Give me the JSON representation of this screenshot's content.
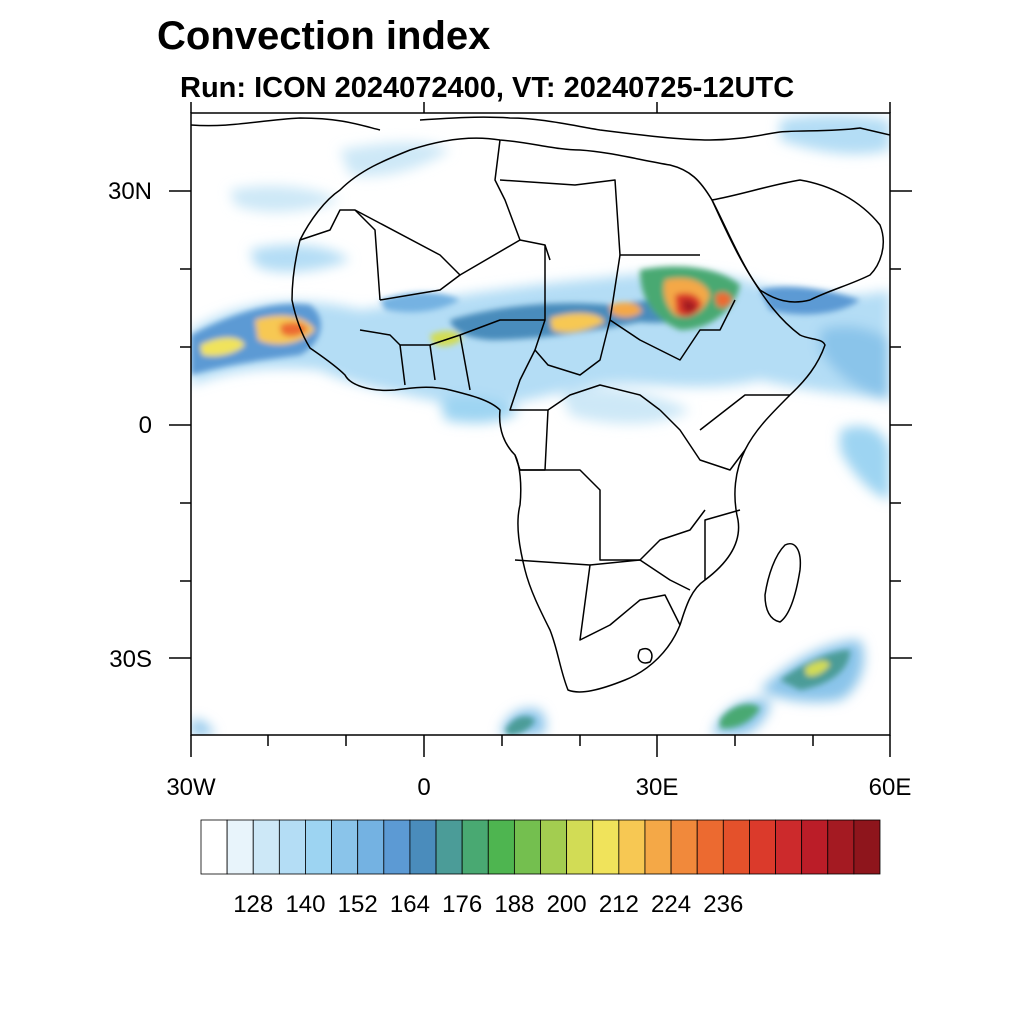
{
  "title": "Convection index",
  "subtitle": "Run: ICON 2024072400,  VT: 20240725-12UTC",
  "axes": {
    "lat_ticks": [
      "30N",
      "0",
      "30S"
    ],
    "lon_ticks": [
      "30W",
      "0",
      "30E",
      "60E"
    ]
  },
  "colorbar": {
    "colors": [
      "#ffffff",
      "#e8f4fb",
      "#cde8f7",
      "#b4ddf5",
      "#9dd4f2",
      "#8ac4ea",
      "#74b2e2",
      "#5c9ad4",
      "#4a8cbc",
      "#4b9c98",
      "#49a972",
      "#4eb550",
      "#74bf4f",
      "#a3cd50",
      "#d2dc55",
      "#f0e35b",
      "#f7c853",
      "#f4a847",
      "#f1893b",
      "#ec6a30",
      "#e4512b",
      "#db3a2b",
      "#cc2a2c",
      "#bb1d28",
      "#a41a22",
      "#8e151c"
    ],
    "labels": [
      "128",
      "140",
      "152",
      "164",
      "176",
      "188",
      "200",
      "212",
      "224",
      "236"
    ]
  }
}
